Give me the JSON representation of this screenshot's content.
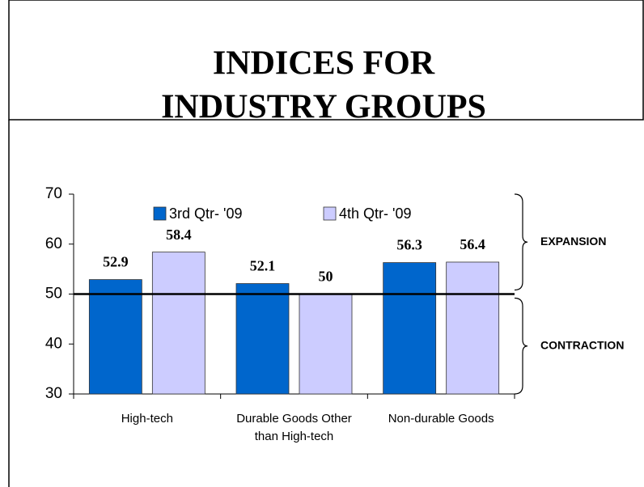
{
  "chart_data": {
    "type": "bar",
    "title": [
      "INDICES FOR",
      "INDUSTRY GROUPS"
    ],
    "categories": [
      "High-tech",
      "Durable Goods Other than High-tech",
      "Non-durable Goods"
    ],
    "series": [
      {
        "name": "3rd Qtr- '09",
        "color": "#0066cc",
        "values": [
          52.9,
          52.1,
          56.3
        ]
      },
      {
        "name": "4th Qtr- '09",
        "color": "#ccccff",
        "values": [
          58.4,
          50,
          56.4
        ]
      }
    ],
    "ylim": [
      30,
      70
    ],
    "yticks": [
      30,
      40,
      50,
      60,
      70
    ],
    "grid": false,
    "reference_line": 50,
    "annotations": [
      "EXPANSION",
      "CONTRACTION"
    ]
  }
}
